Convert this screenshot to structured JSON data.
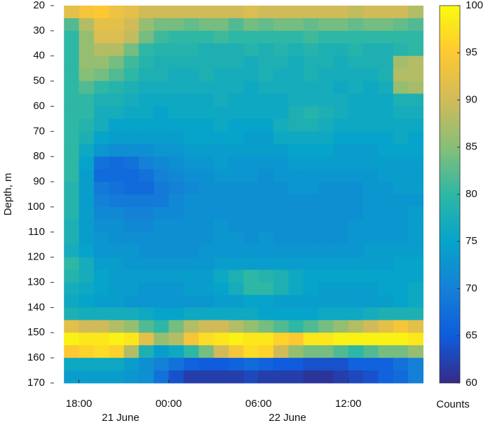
{
  "chart_data": {
    "type": "heatmap",
    "ylabel": "Depth, m",
    "colormap": "parula",
    "x": [
      17,
      18,
      19,
      20,
      21,
      22,
      23,
      24,
      25,
      26,
      27,
      28,
      29,
      30,
      31,
      32,
      33,
      34,
      35,
      36,
      37,
      38,
      39,
      40
    ],
    "y": [
      20,
      25,
      30,
      35,
      40,
      45,
      50,
      55,
      60,
      65,
      70,
      75,
      80,
      85,
      90,
      95,
      100,
      105,
      110,
      115,
      120,
      125,
      130,
      135,
      140,
      145,
      150,
      155,
      160,
      165
    ],
    "z": [
      [
        92,
        94,
        95,
        93,
        92,
        90,
        90,
        90,
        90,
        90,
        90,
        90,
        91,
        90,
        90,
        90,
        90,
        90,
        90,
        89,
        90,
        90,
        90,
        88
      ],
      [
        82,
        88,
        92,
        92,
        90,
        86,
        84,
        84,
        83,
        84,
        84,
        82,
        84,
        83,
        84,
        84,
        83,
        84,
        84,
        83,
        84,
        84,
        83,
        82
      ],
      [
        80,
        86,
        91,
        91,
        89,
        84,
        81,
        80,
        80,
        80,
        81,
        80,
        80,
        80,
        80,
        80,
        81,
        80,
        80,
        80,
        80,
        80,
        80,
        80
      ],
      [
        80,
        86,
        88,
        88,
        84,
        80,
        79,
        79,
        79,
        78,
        78,
        78,
        79,
        78,
        79,
        78,
        79,
        78,
        78,
        79,
        78,
        78,
        79,
        80
      ],
      [
        80,
        86,
        86,
        84,
        81,
        79,
        78,
        78,
        78,
        78,
        78,
        78,
        77,
        78,
        78,
        77,
        78,
        78,
        77,
        78,
        78,
        78,
        87,
        88
      ],
      [
        80,
        85,
        84,
        82,
        80,
        78,
        78,
        77,
        77,
        78,
        77,
        77,
        77,
        78,
        77,
        77,
        78,
        77,
        77,
        77,
        77,
        78,
        88,
        88
      ],
      [
        80,
        82,
        80,
        79,
        78,
        77,
        77,
        77,
        77,
        77,
        77,
        77,
        76,
        77,
        77,
        77,
        77,
        77,
        76,
        77,
        76,
        77,
        86,
        87
      ],
      [
        80,
        80,
        78,
        78,
        77,
        76,
        76,
        76,
        76,
        76,
        77,
        76,
        76,
        76,
        76,
        77,
        77,
        77,
        77,
        76,
        76,
        76,
        78,
        78
      ],
      [
        80,
        80,
        77,
        77,
        76,
        76,
        75,
        76,
        76,
        76,
        76,
        76,
        76,
        76,
        76,
        78,
        79,
        78,
        77,
        76,
        76,
        76,
        77,
        77
      ],
      [
        80,
        79,
        77,
        75,
        75,
        75,
        75,
        75,
        75,
        75,
        76,
        75,
        75,
        75,
        77,
        78,
        78,
        77,
        76,
        76,
        76,
        76,
        76,
        76
      ],
      [
        80,
        78,
        75,
        74,
        74,
        74,
        74,
        74,
        75,
        75,
        75,
        75,
        74,
        74,
        76,
        76,
        76,
        76,
        75,
        75,
        75,
        75,
        76,
        75
      ],
      [
        80,
        76,
        73,
        72,
        72,
        72,
        73,
        73,
        74,
        74,
        74,
        74,
        74,
        74,
        74,
        75,
        75,
        75,
        74,
        74,
        74,
        75,
        75,
        75
      ],
      [
        80,
        75,
        68,
        67,
        68,
        70,
        71,
        72,
        73,
        73,
        74,
        73,
        73,
        73,
        73,
        74,
        74,
        74,
        74,
        74,
        74,
        74,
        74,
        74
      ],
      [
        80,
        74,
        67,
        67,
        67,
        68,
        70,
        71,
        72,
        72,
        73,
        73,
        73,
        72,
        73,
        73,
        73,
        73,
        73,
        73,
        73,
        74,
        74,
        74
      ],
      [
        79,
        74,
        69,
        68,
        67,
        67,
        69,
        70,
        71,
        72,
        72,
        72,
        72,
        72,
        72,
        73,
        73,
        72,
        72,
        72,
        73,
        73,
        74,
        74
      ],
      [
        79,
        74,
        70,
        69,
        69,
        69,
        69,
        71,
        72,
        72,
        72,
        72,
        72,
        72,
        72,
        72,
        72,
        72,
        72,
        72,
        73,
        73,
        73,
        73
      ],
      [
        79,
        74,
        71,
        71,
        70,
        70,
        71,
        71,
        72,
        72,
        72,
        72,
        72,
        72,
        72,
        72,
        72,
        72,
        72,
        72,
        73,
        73,
        73,
        74
      ],
      [
        78,
        74,
        72,
        72,
        71,
        71,
        72,
        72,
        72,
        72,
        73,
        72,
        72,
        72,
        72,
        72,
        72,
        72,
        72,
        73,
        73,
        73,
        73,
        74
      ],
      [
        78,
        74,
        73,
        72,
        72,
        72,
        72,
        72,
        72,
        72,
        73,
        73,
        72,
        73,
        72,
        72,
        72,
        72,
        72,
        73,
        73,
        73,
        73,
        74
      ],
      [
        77,
        75,
        73,
        73,
        73,
        72,
        72,
        72,
        72,
        73,
        73,
        73,
        73,
        73,
        73,
        73,
        73,
        73,
        73,
        73,
        74,
        74,
        74,
        74
      ],
      [
        80,
        77,
        74,
        74,
        73,
        73,
        73,
        73,
        73,
        73,
        74,
        74,
        74,
        74,
        74,
        74,
        74,
        74,
        74,
        74,
        74,
        74,
        75,
        75
      ],
      [
        79,
        77,
        75,
        74,
        74,
        74,
        74,
        74,
        74,
        74,
        76,
        78,
        80,
        79,
        78,
        76,
        75,
        75,
        75,
        75,
        75,
        75,
        75,
        75
      ],
      [
        77,
        76,
        75,
        74,
        74,
        73,
        73,
        73,
        74,
        74,
        75,
        77,
        80,
        80,
        78,
        76,
        75,
        74,
        74,
        74,
        74,
        75,
        75,
        76
      ],
      [
        76,
        75,
        74,
        74,
        73,
        73,
        73,
        73,
        73,
        73,
        74,
        74,
        75,
        75,
        74,
        74,
        74,
        74,
        74,
        74,
        74,
        74,
        75,
        76
      ],
      [
        78,
        77,
        77,
        77,
        77,
        76,
        75,
        75,
        76,
        76,
        76,
        76,
        76,
        75,
        75,
        75,
        75,
        76,
        76,
        76,
        77,
        78,
        78,
        78
      ],
      [
        92,
        90,
        90,
        88,
        86,
        82,
        80,
        84,
        88,
        90,
        90,
        88,
        86,
        84,
        82,
        80,
        82,
        84,
        86,
        88,
        90,
        92,
        94,
        92
      ],
      [
        99,
        98,
        98,
        99,
        98,
        92,
        86,
        88,
        94,
        97,
        98,
        99,
        98,
        98,
        96,
        95,
        98,
        98,
        99,
        99,
        99,
        99,
        99,
        98
      ],
      [
        95,
        96,
        97,
        96,
        88,
        78,
        74,
        76,
        80,
        84,
        90,
        94,
        97,
        96,
        90,
        86,
        84,
        84,
        82,
        80,
        82,
        84,
        84,
        86
      ],
      [
        76,
        76,
        76,
        76,
        74,
        72,
        70,
        68,
        66,
        65,
        65,
        66,
        67,
        66,
        65,
        65,
        64,
        64,
        64,
        66,
        66,
        66,
        68,
        70
      ],
      [
        74,
        74,
        74,
        74,
        73,
        72,
        68,
        64,
        62,
        62,
        62,
        62,
        63,
        62,
        62,
        62,
        61,
        61,
        62,
        63,
        64,
        66,
        67,
        70
      ]
    ],
    "xlim": [
      16.1,
      41.4
    ],
    "ylim": [
      20,
      170
    ],
    "xticks": [
      {
        "value": 18,
        "label": "18:00"
      },
      {
        "value": 24,
        "label": "00:00"
      },
      {
        "value": 30,
        "label": "06:00"
      },
      {
        "value": 36,
        "label": "12:00"
      }
    ],
    "yticks": [
      20,
      30,
      40,
      50,
      60,
      70,
      80,
      90,
      100,
      110,
      120,
      130,
      140,
      150,
      160,
      170
    ],
    "date_labels": [
      "21 June",
      "22 June"
    ],
    "colorbar": {
      "label": "Counts",
      "lim": [
        60,
        100
      ],
      "ticks": [
        60,
        65,
        70,
        75,
        80,
        85,
        90,
        95,
        100
      ]
    }
  }
}
